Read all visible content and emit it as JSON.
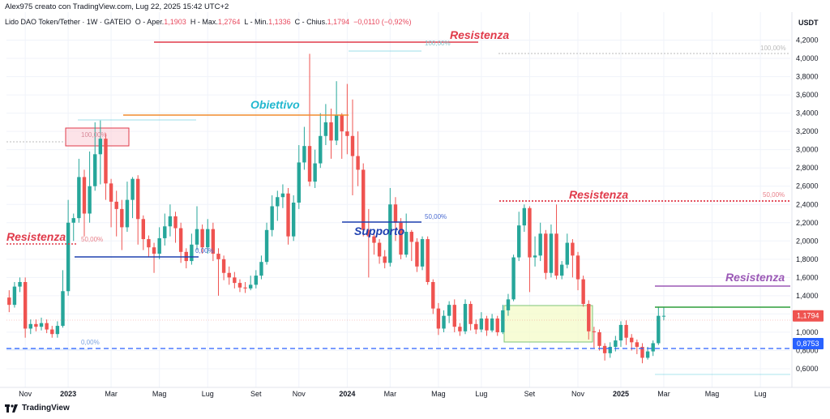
{
  "header": {
    "author_line": "Alex975 creato con TradingView.com, Lug 22, 2025 15:42 UTC+2",
    "symbol": "Lido DAO Token/Tether · 1W · GATEIO",
    "open_label": "O - Aper.",
    "open": "1,1903",
    "high_label": "H - Max.",
    "high": "1,2764",
    "low_label": "L - Min.",
    "low": "1,1336",
    "close_label": "C - Chius.",
    "close": "1,1794",
    "change": "−0,0110 (−0,92%)"
  },
  "footer": {
    "brand": "TradingView",
    "brand_icon": "tradingview-logo-icon"
  },
  "colors": {
    "up": "#26a69a",
    "down": "#ef5350",
    "resist": "#e03a4a",
    "support": "#1e40af",
    "target": "#22b8cf",
    "purple": "#9b59b6",
    "green_line": "#2e9e3a",
    "dash_blue": "#2962ff"
  },
  "chart_data": {
    "type": "candlestick",
    "currency": "USDT",
    "y_ticks": [
      "4,2000",
      "4,0000",
      "3,8000",
      "3,6000",
      "3,4000",
      "3,2000",
      "3,0000",
      "2,8000",
      "2,6000",
      "2,4000",
      "2,2000",
      "2,0000",
      "1,8000",
      "1,6000",
      "1,4000",
      "1,2000",
      "1,0000",
      "0,8000",
      "0,6000"
    ],
    "y_tick_values": [
      4.2,
      4.0,
      3.8,
      3.6,
      3.4,
      3.2,
      3.0,
      2.8,
      2.6,
      2.4,
      2.2,
      2.0,
      1.8,
      1.6,
      1.4,
      1.2,
      1.0,
      0.8,
      0.6
    ],
    "ylim": [
      0.52,
      4.32
    ],
    "x_labels": [
      "Nov",
      "2023",
      "Mar",
      "Mag",
      "Lug",
      "Set",
      "Nov",
      "2024",
      "Mar",
      "Mag",
      "Lug",
      "Set",
      "Nov",
      "2025",
      "Mar",
      "Mag",
      "Lug"
    ],
    "x_label_bold": [
      false,
      true,
      false,
      false,
      false,
      false,
      false,
      true,
      false,
      false,
      false,
      false,
      false,
      true,
      false,
      false,
      false
    ],
    "x_index": [
      3,
      11,
      19,
      28,
      37,
      46,
      54,
      63,
      71,
      80,
      88,
      97,
      106,
      114,
      122,
      131,
      140
    ],
    "last_price": "1,1794",
    "last_price_value": 1.1794,
    "support_price": "0,8753",
    "support_price_value": 0.8753,
    "annotations": [
      {
        "text": "Resistenza",
        "color": "#e03a4a"
      },
      {
        "text": "Obiettivo",
        "color": "#22b8cf"
      },
      {
        "text": "Resistenza",
        "color": "#e03a4a"
      },
      {
        "text": "Supporto",
        "color": "#1e40af"
      },
      {
        "text": "Resistenza",
        "color": "#e03a4a"
      },
      {
        "text": "Resistenza",
        "color": "#9b59b6"
      }
    ],
    "fib_labels": [
      "100,00%",
      "50,00%",
      "0,00%",
      "100,00%",
      "50,00%",
      "0,00%",
      "100,00%",
      "50,00%"
    ],
    "candles": [
      [
        1.38,
        1.3,
        1.46,
        1.22
      ],
      [
        1.3,
        1.5,
        1.55,
        1.27
      ],
      [
        1.5,
        1.55,
        1.6,
        1.44
      ],
      [
        1.55,
        1.04,
        1.6,
        0.94
      ],
      [
        1.04,
        1.09,
        1.14,
        0.98
      ],
      [
        1.09,
        1.06,
        1.14,
        1.01
      ],
      [
        1.06,
        1.1,
        1.16,
        1.02
      ],
      [
        1.1,
        1.03,
        1.14,
        0.99
      ],
      [
        1.03,
        0.98,
        1.07,
        0.94
      ],
      [
        0.98,
        1.07,
        1.12,
        0.94
      ],
      [
        1.07,
        1.45,
        1.68,
        1.05
      ],
      [
        1.45,
        2.2,
        2.45,
        1.4
      ],
      [
        2.2,
        2.25,
        2.3,
        2.0
      ],
      [
        2.25,
        2.7,
        2.9,
        2.2
      ],
      [
        2.7,
        2.3,
        2.78,
        2.05
      ],
      [
        2.3,
        2.6,
        2.98,
        2.2
      ],
      [
        2.6,
        2.95,
        3.3,
        2.55
      ],
      [
        2.95,
        3.12,
        3.32,
        2.62
      ],
      [
        3.12,
        2.63,
        3.18,
        2.45
      ],
      [
        2.63,
        2.43,
        2.68,
        2.15
      ],
      [
        2.43,
        2.35,
        2.55,
        2.05
      ],
      [
        2.35,
        2.15,
        2.45,
        1.9
      ],
      [
        2.15,
        2.45,
        2.65,
        2.1
      ],
      [
        2.45,
        2.68,
        2.7,
        2.25
      ],
      [
        2.68,
        2.24,
        2.72,
        1.96
      ],
      [
        2.24,
        2.02,
        2.28,
        1.9
      ],
      [
        2.02,
        1.93,
        2.06,
        1.83
      ],
      [
        1.93,
        1.86,
        1.98,
        1.65
      ],
      [
        1.86,
        2.03,
        2.15,
        1.8
      ],
      [
        2.03,
        2.16,
        2.3,
        1.95
      ],
      [
        2.16,
        2.27,
        2.4,
        2.05
      ],
      [
        2.27,
        2.14,
        2.32,
        1.98
      ],
      [
        2.14,
        1.88,
        2.2,
        1.76
      ],
      [
        1.88,
        1.78,
        1.92,
        1.7
      ],
      [
        1.78,
        1.96,
        2.08,
        1.74
      ],
      [
        1.96,
        2.13,
        2.38,
        1.9
      ],
      [
        2.13,
        1.93,
        2.18,
        1.86
      ],
      [
        1.93,
        2.13,
        2.24,
        1.86
      ],
      [
        2.13,
        1.86,
        2.2,
        1.78
      ],
      [
        1.86,
        1.8,
        1.92,
        1.4
      ],
      [
        1.8,
        1.65,
        1.84,
        1.57
      ],
      [
        1.65,
        1.6,
        1.72,
        1.52
      ],
      [
        1.6,
        1.54,
        1.66,
        1.48
      ],
      [
        1.54,
        1.49,
        1.58,
        1.44
      ],
      [
        1.49,
        1.48,
        1.55,
        1.43
      ],
      [
        1.48,
        1.52,
        1.62,
        1.46
      ],
      [
        1.52,
        1.62,
        1.68,
        1.48
      ],
      [
        1.62,
        1.77,
        1.84,
        1.58
      ],
      [
        1.77,
        2.12,
        2.2,
        1.74
      ],
      [
        2.12,
        2.38,
        2.5,
        2.05
      ],
      [
        2.38,
        2.48,
        2.55,
        2.22
      ],
      [
        2.48,
        2.52,
        2.62,
        2.36
      ],
      [
        2.52,
        2.05,
        2.58,
        1.96
      ],
      [
        2.05,
        2.42,
        2.5,
        2.0
      ],
      [
        2.42,
        2.86,
        3.05,
        2.35
      ],
      [
        2.86,
        3.04,
        3.25,
        2.78
      ],
      [
        3.04,
        2.65,
        4.05,
        2.6
      ],
      [
        2.65,
        2.85,
        3.0,
        2.58
      ],
      [
        2.85,
        3.15,
        3.4,
        2.8
      ],
      [
        3.15,
        3.3,
        3.5,
        3.05
      ],
      [
        3.3,
        3.1,
        3.45,
        2.9
      ],
      [
        3.1,
        3.38,
        3.75,
        3.05
      ],
      [
        3.38,
        3.2,
        3.4,
        2.9
      ],
      [
        3.2,
        3.15,
        3.72,
        2.95
      ],
      [
        3.15,
        2.93,
        3.55,
        2.5
      ],
      [
        2.93,
        2.78,
        3.2,
        2.6
      ],
      [
        2.78,
        2.12,
        2.85,
        2.05
      ],
      [
        2.12,
        2.05,
        2.35,
        1.6
      ],
      [
        2.05,
        1.98,
        2.1,
        1.85
      ],
      [
        1.98,
        1.83,
        2.02,
        1.75
      ],
      [
        1.83,
        1.76,
        1.9,
        1.7
      ],
      [
        1.76,
        2.4,
        2.58,
        1.72
      ],
      [
        2.4,
        2.2,
        2.48,
        2.0
      ],
      [
        2.2,
        1.85,
        2.25,
        1.8
      ],
      [
        1.85,
        2.1,
        2.3,
        1.82
      ],
      [
        2.1,
        1.99,
        2.12,
        1.78
      ],
      [
        1.99,
        1.72,
        2.03,
        1.66
      ],
      [
        1.72,
        2.02,
        2.05,
        1.68
      ],
      [
        2.02,
        1.55,
        2.05,
        1.52
      ],
      [
        1.55,
        1.26,
        1.58,
        1.2
      ],
      [
        1.26,
        1.04,
        1.32,
        0.97
      ],
      [
        1.04,
        1.18,
        1.24,
        1.0
      ],
      [
        1.18,
        1.3,
        1.34,
        1.1
      ],
      [
        1.3,
        1.06,
        1.36,
        1.0
      ],
      [
        1.06,
        1.01,
        1.1,
        0.96
      ],
      [
        1.01,
        1.31,
        1.36,
        0.98
      ],
      [
        1.31,
        1.09,
        1.34,
        1.02
      ],
      [
        1.09,
        1.03,
        1.14,
        0.98
      ],
      [
        1.03,
        1.15,
        1.22,
        1.0
      ],
      [
        1.15,
        1.02,
        1.18,
        0.96
      ],
      [
        1.02,
        1.15,
        1.2,
        1.0
      ],
      [
        1.15,
        1.0,
        1.18,
        0.96
      ],
      [
        1.0,
        1.24,
        1.3,
        0.98
      ],
      [
        1.24,
        1.36,
        1.42,
        1.18
      ],
      [
        1.36,
        1.82,
        1.85,
        1.34
      ],
      [
        1.82,
        2.17,
        2.32,
        1.78
      ],
      [
        2.17,
        2.36,
        2.4,
        2.1
      ],
      [
        2.36,
        1.82,
        2.38,
        1.44
      ],
      [
        1.82,
        1.84,
        2.05,
        1.72
      ],
      [
        1.84,
        2.08,
        2.2,
        1.78
      ],
      [
        2.08,
        1.65,
        2.12,
        1.58
      ],
      [
        1.65,
        2.08,
        2.18,
        1.6
      ],
      [
        2.08,
        1.62,
        2.4,
        1.58
      ],
      [
        1.62,
        1.74,
        1.78,
        1.58
      ],
      [
        1.74,
        1.98,
        2.08,
        1.7
      ],
      [
        1.98,
        1.84,
        2.02,
        1.6
      ],
      [
        1.84,
        1.58,
        1.88,
        1.46
      ],
      [
        1.58,
        1.31,
        1.62,
        1.28
      ],
      [
        1.31,
        1.01,
        1.35,
        0.92
      ],
      [
        1.01,
        1.0,
        1.06,
        0.83
      ],
      [
        1.0,
        0.85,
        1.03,
        0.8
      ],
      [
        0.85,
        0.77,
        0.88,
        0.69
      ],
      [
        0.77,
        0.84,
        0.89,
        0.72
      ],
      [
        0.84,
        0.91,
        0.96,
        0.79
      ],
      [
        0.91,
        1.08,
        1.12,
        0.84
      ],
      [
        1.08,
        0.94,
        1.13,
        0.86
      ],
      [
        0.94,
        0.89,
        0.98,
        0.8
      ],
      [
        0.89,
        0.84,
        0.92,
        0.76
      ],
      [
        0.84,
        0.72,
        0.88,
        0.66
      ],
      [
        0.72,
        0.79,
        0.84,
        0.7
      ],
      [
        0.79,
        0.88,
        0.91,
        0.74
      ],
      [
        0.88,
        1.18,
        1.28,
        0.86
      ],
      [
        1.18,
        1.18,
        1.27,
        1.13
      ]
    ]
  }
}
